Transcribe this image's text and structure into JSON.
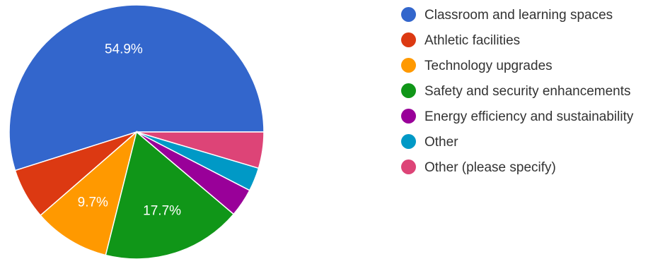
{
  "chart_data": {
    "type": "pie",
    "slices": [
      {
        "name": "Classroom and learning spaces",
        "value": 54.9,
        "color": "#3366cc",
        "label": "54.9%"
      },
      {
        "name": "Athletic facilities",
        "value": 6.5,
        "color": "#dc3912",
        "label": ""
      },
      {
        "name": "Technology upgrades",
        "value": 9.7,
        "color": "#ff9900",
        "label": "9.7%"
      },
      {
        "name": "Safety and security enhancements",
        "value": 17.7,
        "color": "#109618",
        "label": "17.7%"
      },
      {
        "name": "Energy efficiency and sustainability",
        "value": 3.6,
        "color": "#990099",
        "label": ""
      },
      {
        "name": "Other",
        "value": 3.0,
        "color": "#0099c6",
        "label": ""
      },
      {
        "name": "Other (please specify)",
        "value": 4.6,
        "color": "#dd4477",
        "label": ""
      }
    ],
    "legend": {
      "position": "right"
    }
  }
}
